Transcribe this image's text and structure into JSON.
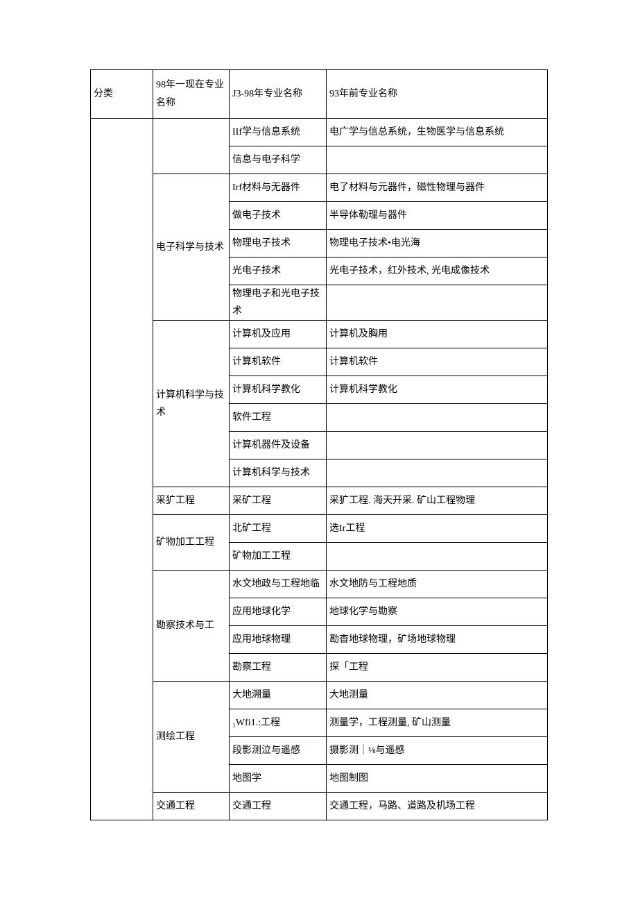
{
  "header": {
    "col1": "分类",
    "col2": "98年一现在专业名称",
    "col3": "J3-98年专业名称",
    "col4": "93年前专业名称"
  },
  "groups": [
    {
      "col2": "",
      "rows": [
        {
          "col3": "IIf学与信息系统",
          "col4": "电广学与信总系统，生物医学与信息系统"
        },
        {
          "col3": "信息与电子科学",
          "col4": ""
        }
      ]
    },
    {
      "col2": "电子科学与技术",
      "rows": [
        {
          "col3": "Irf材料与无器件",
          "col4": "电了材料与元器件，磁性物理与器件"
        },
        {
          "col3": "做电子技术",
          "col4": "半导体勒理与器件"
        },
        {
          "col3": "物理电子技术",
          "col4": "物理电子技术•电光海"
        },
        {
          "col3": "光电子技术",
          "col4": "光电子技术，红外技术, 光电成像技术"
        },
        {
          "col3": "物理电子和光电子技术",
          "col4": ""
        }
      ]
    },
    {
      "col2": "计算机科学与技术",
      "rows": [
        {
          "col3": "计算机及应用",
          "col4": "计算机及胸用"
        },
        {
          "col3": "计算机软件",
          "col4": "计算机软件"
        },
        {
          "col3": "计算机科学教化",
          "col4": "计算机科学教化"
        },
        {
          "col3": "软件工程",
          "col4": ""
        },
        {
          "col3": "计算机器件及设备",
          "col4": ""
        },
        {
          "col3": "计算机科学与技术",
          "col4": ""
        }
      ]
    },
    {
      "col2": "采犷工程",
      "rows": [
        {
          "col3": "采矿工程",
          "col4": "采犷工程. 海天开采. 矿山工程物理"
        }
      ]
    },
    {
      "col2": "矿物加工工程",
      "rows": [
        {
          "col3": "北矿工程",
          "col4": "选Ir工程"
        },
        {
          "col3": "矿物加工工程",
          "col4": ""
        }
      ]
    },
    {
      "col2": "勘察技术与工",
      "rows": [
        {
          "col3": "水文地政与工程地临",
          "col4": "水文地防与工程地质"
        },
        {
          "col3": "应用地球化学",
          "col4": "地球化学与勘察"
        },
        {
          "col3": "应用地球物理",
          "col4": "勘杳地球物理，矿场地球物理"
        },
        {
          "col3": "勘察工程",
          "col4": "探「工程"
        }
      ]
    },
    {
      "col2": "测绘工程",
      "rows": [
        {
          "col3": "大地溯量",
          "col4": "大地测量"
        },
        {
          "col3": "₁Wfi1.:工程",
          "col4": "测量学，工程测量, 矿山测量"
        },
        {
          "col3": "段影测泣与遥感",
          "col4": "摄影测｜⅛与遥感"
        },
        {
          "col3": "地图学",
          "col4": "地图制图"
        }
      ]
    },
    {
      "col2": "交通工程",
      "rows": [
        {
          "col3": "交通工程",
          "col4": "交通工程，马路、道路及机场工程"
        }
      ]
    }
  ]
}
